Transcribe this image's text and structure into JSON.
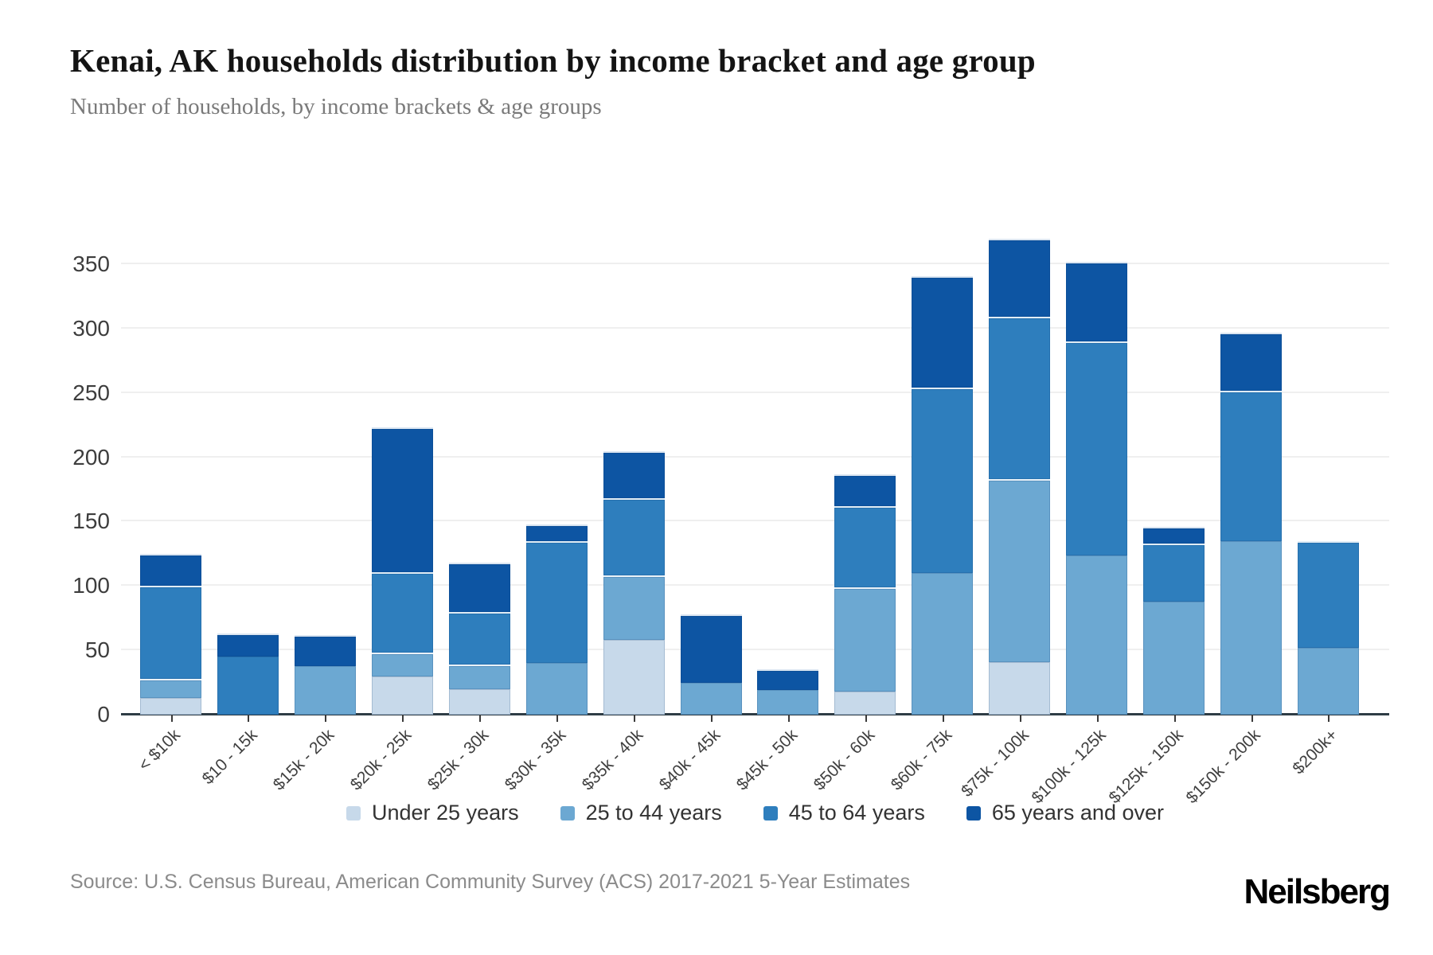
{
  "header": {
    "title": "Kenai, AK households distribution by income bracket and age group",
    "subtitle": "Number of households, by income brackets & age groups"
  },
  "source_note": "Source: U.S. Census Bureau, American Community Survey (ACS) 2017-2021 5-Year Estimates",
  "brand": "Neilsberg",
  "colors": {
    "under_25": "#c7d9ea",
    "age_25_44": "#6ca8d2",
    "age_45_64": "#2e7ebd",
    "age_65_over": "#0d55a3",
    "grid": "#efefef",
    "axis": "#2e3c45"
  },
  "chart_data": {
    "type": "bar",
    "stacked": true,
    "title": "Kenai, AK households distribution by income bracket and age group",
    "xlabel": "",
    "ylabel": "Number of households",
    "ylim": [
      0,
      389
    ],
    "yticks": [
      0,
      50,
      100,
      150,
      200,
      250,
      300,
      350
    ],
    "grid": true,
    "legend_position": "bottom",
    "categories": [
      "< $10k",
      "$10 - 15k",
      "$15k - 20k",
      "$20k - 25k",
      "$25k - 30k",
      "$30k - 35k",
      "$35k - 40k",
      "$40k - 45k",
      "$45k - 50k",
      "$50k - 60k",
      "$60k - 75k",
      "$75k - 100k",
      "$100k - 125k",
      "$125k - 150k",
      "$150k - 200k",
      "$200k+"
    ],
    "series": [
      {
        "name": "Under 25 years",
        "color_key": "under_25",
        "values": [
          13,
          0,
          0,
          30,
          20,
          0,
          58,
          0,
          0,
          18,
          0,
          41,
          0,
          0,
          0,
          0
        ]
      },
      {
        "name": "25 to 44 years",
        "color_key": "age_25_44",
        "values": [
          15,
          0,
          38,
          18,
          19,
          40,
          50,
          25,
          19,
          81,
          110,
          142,
          124,
          88,
          135,
          52
        ]
      },
      {
        "name": "45 to 64 years",
        "color_key": "age_45_64",
        "values": [
          72,
          45,
          0,
          63,
          41,
          95,
          60,
          0,
          0,
          63,
          144,
          126,
          166,
          45,
          117,
          83
        ]
      },
      {
        "name": "65 years and over",
        "color_key": "age_65_over",
        "values": [
          25,
          18,
          24,
          112,
          38,
          13,
          37,
          53,
          16,
          25,
          87,
          61,
          62,
          13,
          45,
          0
        ]
      }
    ],
    "totals": [
      125,
      63,
      62,
      223,
      118,
      148,
      205,
      78,
      35,
      187,
      341,
      370,
      352,
      146,
      297,
      135
    ]
  }
}
